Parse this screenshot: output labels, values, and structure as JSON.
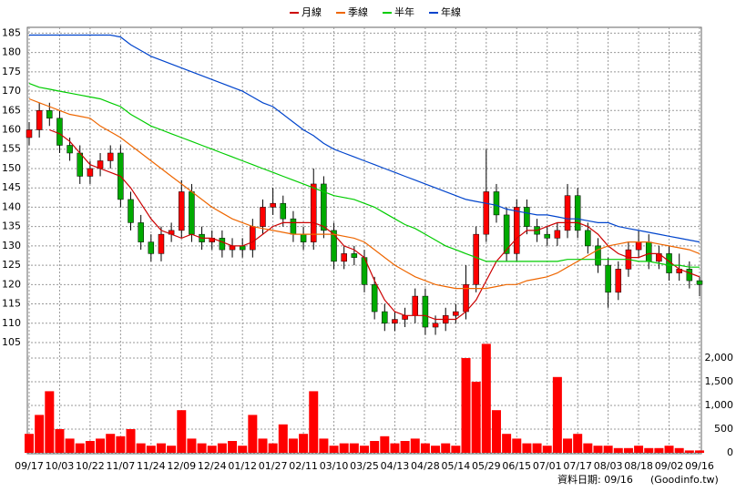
{
  "chart_data": {
    "type": "candlestick",
    "categories": [
      "09/17",
      null,
      null,
      "10/03",
      null,
      null,
      "10/22",
      null,
      null,
      "11/07",
      null,
      null,
      "11/24",
      null,
      null,
      "12/09",
      null,
      null,
      "12/24",
      null,
      null,
      "01/12",
      null,
      null,
      "01/27",
      null,
      null,
      "02/11",
      null,
      null,
      "03/10",
      null,
      null,
      "03/25",
      null,
      null,
      "04/13",
      null,
      null,
      "04/28",
      null,
      null,
      "05/14",
      null,
      null,
      "05/29",
      null,
      null,
      "06/15",
      null,
      null,
      "07/01",
      null,
      null,
      "07/17",
      null,
      null,
      "08/03",
      null,
      null,
      "08/18",
      null,
      null,
      "09/02",
      null,
      null,
      "09/16"
    ],
    "open": [
      158,
      160,
      165,
      163,
      156,
      154,
      148,
      150,
      152,
      154,
      142,
      136,
      131,
      128,
      133,
      134,
      144,
      133,
      131,
      132,
      129,
      130,
      129,
      135,
      140,
      141,
      137,
      133,
      131,
      146,
      134,
      126,
      128,
      127,
      120,
      113,
      110,
      111,
      112,
      117,
      109,
      110,
      112,
      113,
      120,
      133,
      144,
      138,
      128,
      140,
      135,
      133,
      132,
      134,
      143,
      134,
      130,
      125,
      118,
      124,
      129,
      131,
      126,
      128,
      123,
      124,
      121
    ],
    "high": [
      162,
      167,
      167,
      165,
      158,
      156,
      152,
      154,
      156,
      156,
      144,
      138,
      133,
      135,
      136,
      147,
      146,
      135,
      134,
      134,
      132,
      132,
      137,
      142,
      145,
      143,
      139,
      135,
      150,
      148,
      136,
      130,
      130,
      129,
      122,
      115,
      113,
      114,
      119,
      119,
      112,
      114,
      115,
      125,
      135,
      155,
      146,
      140,
      142,
      142,
      137,
      135,
      136,
      146,
      145,
      136,
      132,
      127,
      126,
      131,
      134,
      133,
      130,
      130,
      128,
      126,
      122
    ],
    "low": [
      156,
      158,
      161,
      154,
      152,
      146,
      146,
      148,
      150,
      140,
      134,
      129,
      126,
      126,
      131,
      132,
      131,
      129,
      129,
      127,
      127,
      127,
      127,
      133,
      138,
      135,
      131,
      129,
      129,
      132,
      124,
      124,
      125,
      118,
      111,
      108,
      108,
      109,
      110,
      107,
      107,
      108,
      110,
      111,
      118,
      131,
      136,
      126,
      126,
      133,
      131,
      130,
      130,
      132,
      132,
      128,
      123,
      114,
      116,
      122,
      127,
      124,
      124,
      121,
      121,
      119,
      117
    ],
    "close": [
      160,
      165,
      163,
      156,
      154,
      148,
      150,
      152,
      154,
      142,
      136,
      131,
      128,
      133,
      134,
      144,
      133,
      131,
      132,
      129,
      130,
      129,
      135,
      140,
      141,
      137,
      133,
      131,
      146,
      134,
      126,
      128,
      127,
      120,
      113,
      110,
      111,
      112,
      117,
      109,
      110,
      112,
      113,
      120,
      133,
      144,
      138,
      128,
      140,
      135,
      133,
      132,
      134,
      143,
      134,
      130,
      125,
      118,
      124,
      129,
      131,
      126,
      128,
      123,
      124,
      121,
      120
    ],
    "up_color": "#ff0000",
    "down_color": "#00aa00",
    "ylim": [
      101,
      186.5
    ],
    "yticks": [
      105,
      110,
      115,
      120,
      125,
      130,
      135,
      140,
      145,
      150,
      155,
      160,
      165,
      170,
      175,
      180,
      185
    ],
    "grid": true,
    "series": [
      {
        "name": "月線",
        "color": "#cc0000",
        "values": [
          null,
          null,
          160,
          159,
          157,
          154,
          151,
          150,
          149,
          148,
          145,
          141,
          137,
          134,
          133,
          132,
          133,
          132,
          132,
          131,
          130,
          130,
          131,
          133,
          135,
          136,
          136,
          136,
          136,
          135,
          133,
          130,
          129,
          127,
          121,
          116,
          113,
          112,
          112,
          112,
          111,
          111,
          111,
          113,
          116,
          121,
          126,
          129,
          132,
          134,
          134,
          135,
          136,
          136,
          136,
          135,
          133,
          130,
          128,
          127,
          127,
          128,
          128,
          126,
          124,
          123,
          122
        ]
      },
      {
        "name": "季線",
        "color": "#ee6600",
        "values": [
          168,
          167,
          166,
          165,
          164,
          163.5,
          163,
          161,
          159.5,
          158,
          156,
          154,
          152,
          150,
          148,
          146,
          144,
          142,
          140,
          138.5,
          137,
          136,
          135,
          134.5,
          134,
          133.5,
          133,
          133,
          133,
          133,
          133,
          132.5,
          132,
          131,
          129,
          127,
          125,
          123.5,
          122,
          121,
          120,
          119.5,
          119,
          119,
          119,
          119,
          119.5,
          120,
          120,
          121,
          121.5,
          122,
          123,
          124.5,
          126,
          127.5,
          129,
          130,
          130.5,
          131,
          131,
          131,
          130.5,
          130,
          129.5,
          129,
          128
        ]
      },
      {
        "name": "半年",
        "color": "#00cc00",
        "values": [
          172,
          171,
          170.5,
          170,
          169.5,
          169,
          168.5,
          168,
          167,
          166,
          164,
          162.5,
          161,
          160,
          159,
          158,
          157,
          156,
          155,
          154,
          153,
          152,
          151,
          150,
          149,
          148,
          147,
          146,
          145,
          144,
          143,
          142.5,
          142,
          141,
          140,
          138.5,
          137,
          135.5,
          134.5,
          133,
          131.5,
          130,
          129,
          128,
          127,
          126,
          126,
          126,
          126,
          126,
          126,
          126,
          126,
          126.5,
          126.5,
          126.5,
          126.5,
          126.5,
          126.5,
          126.5,
          126,
          126,
          125.5,
          125,
          125,
          124.5,
          124.5
        ]
      },
      {
        "name": "年線",
        "color": "#0044cc",
        "values": [
          184.5,
          184.5,
          184.5,
          184.5,
          184.5,
          184.5,
          184.5,
          184.5,
          184.5,
          184,
          182,
          180.5,
          179,
          178,
          177,
          176,
          175,
          174,
          173,
          172,
          171,
          170,
          168.5,
          167,
          166,
          164,
          162,
          160,
          158.5,
          156.5,
          155,
          154,
          153,
          152,
          151,
          150,
          149,
          148,
          147,
          146,
          145,
          144,
          143,
          142,
          141.5,
          141,
          140.5,
          139.5,
          139,
          138.5,
          138,
          138,
          137.5,
          137,
          137,
          136.5,
          136,
          136,
          135,
          134.5,
          134,
          133.5,
          133,
          132.5,
          132,
          131.5,
          131
        ]
      }
    ],
    "volume": {
      "color": "#ff0000",
      "ylim": [
        0,
        2250
      ],
      "yticks": [
        0,
        500,
        {
          "value": 1000,
          "label": "1,000"
        },
        {
          "value": 1500,
          "label": "1,500"
        },
        {
          "value": 2000,
          "label": "2,000"
        }
      ],
      "values": [
        400,
        800,
        1300,
        500,
        300,
        200,
        250,
        300,
        400,
        350,
        500,
        200,
        150,
        200,
        150,
        900,
        300,
        200,
        150,
        200,
        250,
        150,
        800,
        300,
        200,
        600,
        300,
        400,
        1300,
        300,
        150,
        200,
        200,
        150,
        250,
        350,
        200,
        250,
        300,
        200,
        150,
        200,
        150,
        2000,
        1500,
        2300,
        900,
        400,
        300,
        200,
        200,
        150,
        1600,
        300,
        400,
        200,
        150,
        150,
        100,
        100,
        150,
        100,
        100,
        150,
        100,
        50,
        50
      ]
    },
    "footer": "資料日期: 09/16",
    "source": "(Goodinfo.tw)"
  }
}
